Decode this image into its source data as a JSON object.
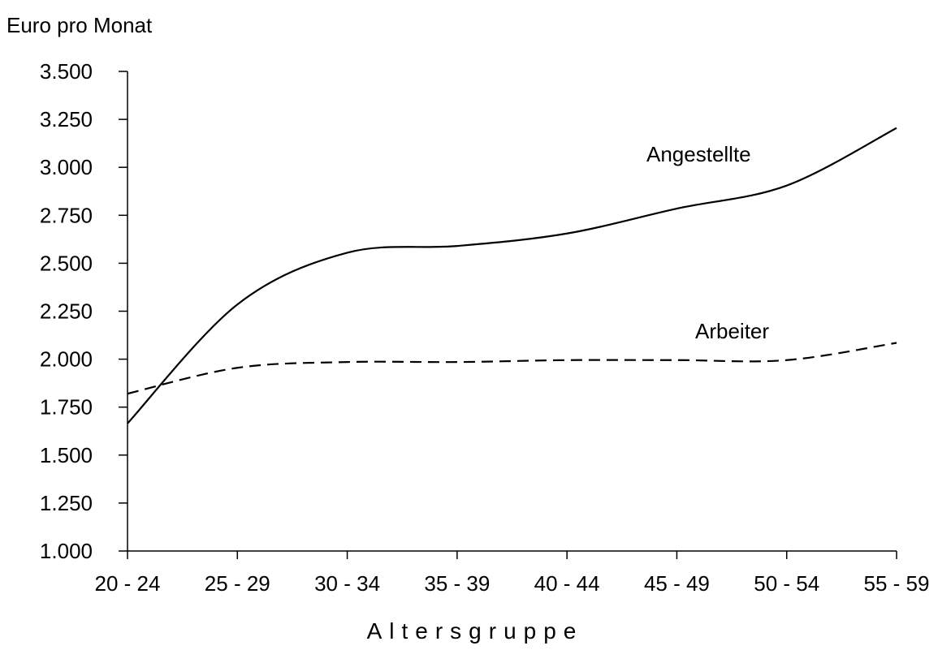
{
  "chart_data": {
    "type": "line",
    "ylabel": "Euro pro Monat",
    "xlabel": "Altersgruppe",
    "categories": [
      "20 - 24",
      "25 - 29",
      "30 - 34",
      "35 - 39",
      "40 - 44",
      "45 - 49",
      "50 - 54",
      "55 - 59"
    ],
    "ylim": [
      1000,
      3500
    ],
    "yticks": [
      1000,
      1250,
      1500,
      1750,
      2000,
      2250,
      2500,
      2750,
      3000,
      3250,
      3500
    ],
    "ytick_labels": [
      "1.000",
      "1.250",
      "1.500",
      "1.750",
      "2.000",
      "2.250",
      "2.500",
      "2.750",
      "3.000",
      "3.250",
      "3.500"
    ],
    "grid": false,
    "series": [
      {
        "name": "Angestellte",
        "line_style": "solid",
        "color": "#000000",
        "values": [
          1665,
          2285,
          2555,
          2590,
          2655,
          2785,
          2905,
          3205
        ]
      },
      {
        "name": "Arbeiter",
        "line_style": "dashed",
        "color": "#000000",
        "values": [
          1820,
          1955,
          1985,
          1985,
          1995,
          1995,
          1995,
          2085
        ]
      }
    ]
  }
}
